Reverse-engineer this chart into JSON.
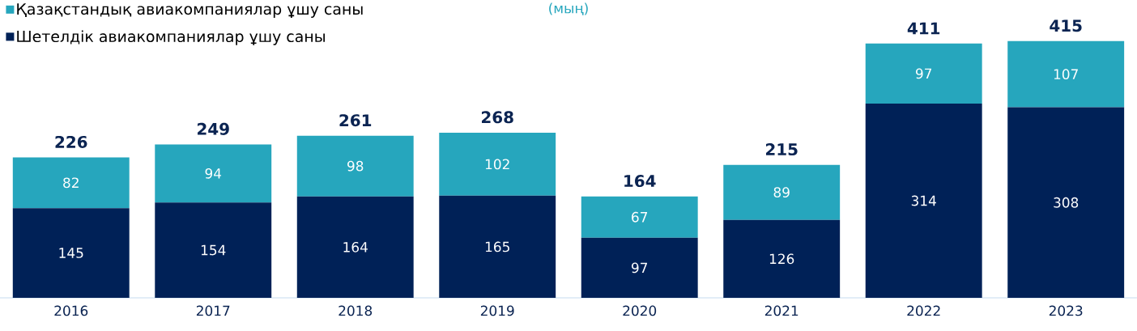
{
  "chart_data": {
    "type": "bar",
    "subtitle": "(мың)",
    "stacked": true,
    "data_labels": true,
    "legend": "top left",
    "grid": false,
    "categories": [
      "2016",
      "2017",
      "2018",
      "2019",
      "2020",
      "2021",
      "2022",
      "2023"
    ],
    "series": [
      {
        "name": "Шетелдік авиакомпаниялар ұшу саны",
        "color": "#002157",
        "values": [
          145,
          154,
          164,
          165,
          97,
          126,
          314,
          308
        ]
      },
      {
        "name": "Қазақстандық авиакомпаниялар ұшу саны",
        "color": "#26a6bd",
        "values": [
          82,
          94,
          98,
          102,
          67,
          89,
          97,
          107
        ]
      }
    ],
    "totals": [
      "226",
      "249",
      "261",
      "268",
      "164",
      "215",
      "411",
      "415"
    ]
  }
}
